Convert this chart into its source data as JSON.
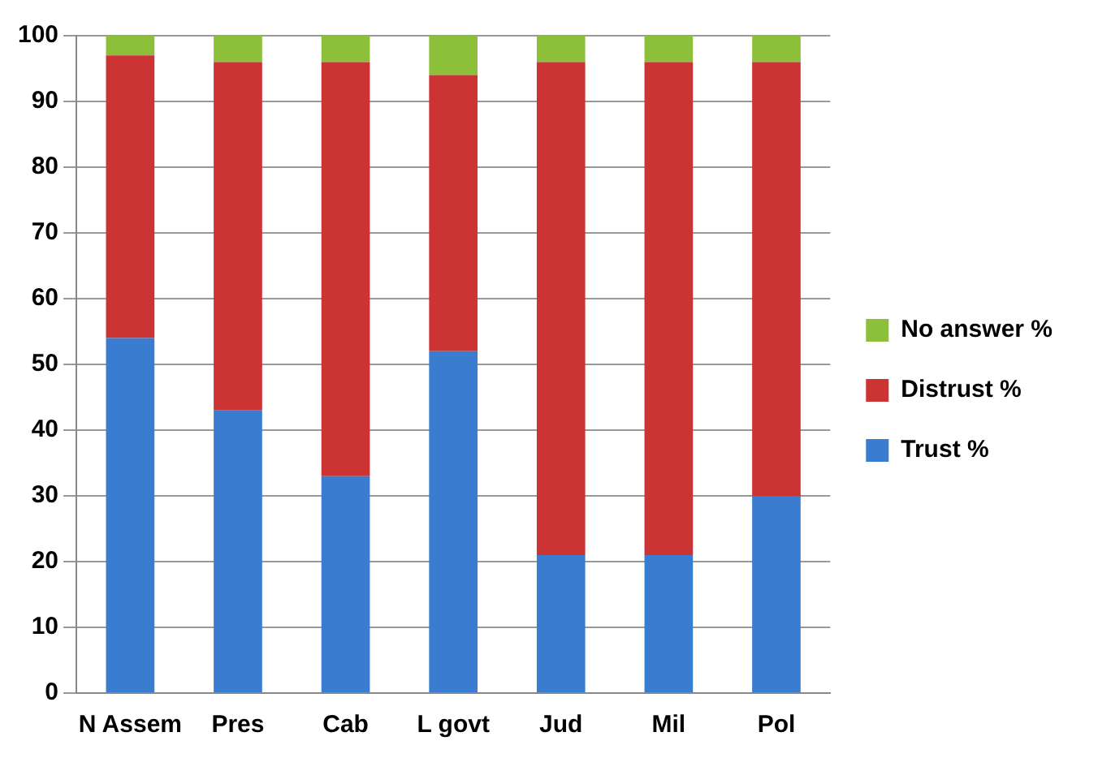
{
  "chart_data": {
    "type": "bar",
    "stacked": true,
    "categories": [
      "N Assem",
      "Pres",
      "Cab",
      "L govt",
      "Jud",
      "Mil",
      "Pol"
    ],
    "series": [
      {
        "name": "Trust %",
        "color": "#3a7dd0",
        "values": [
          54,
          43,
          33,
          52,
          21,
          21,
          30
        ]
      },
      {
        "name": "Distrust %",
        "color": "#cc3333",
        "values": [
          43,
          53,
          63,
          42,
          75,
          75,
          66
        ]
      },
      {
        "name": "No answer %",
        "color": "#8cbf3a",
        "values": [
          3,
          4,
          4,
          6,
          4,
          4,
          4
        ]
      }
    ],
    "ylim": [
      0,
      100
    ],
    "yticks": [
      0,
      10,
      20,
      30,
      40,
      50,
      60,
      70,
      80,
      90,
      100
    ],
    "grid": "y",
    "legend": "right"
  }
}
